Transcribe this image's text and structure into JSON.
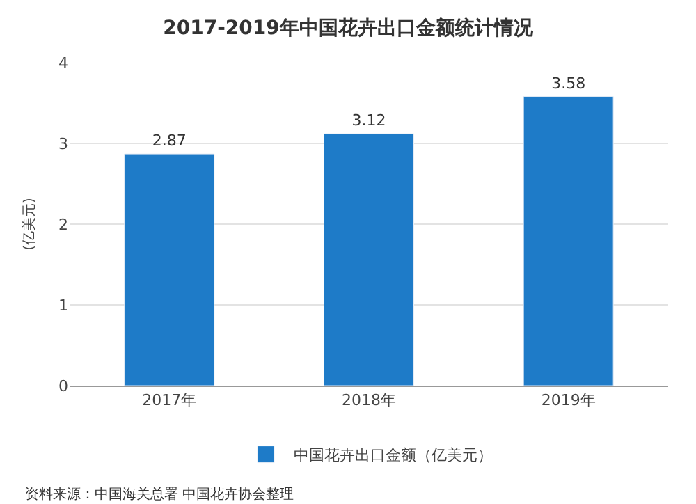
{
  "chart_data": {
    "type": "bar",
    "title": "2017-2019年中国花卉出口金额统计情况",
    "ylabel": "(亿美元)",
    "categories": [
      "2017年",
      "2018年",
      "2019年"
    ],
    "series": [
      {
        "name": "中国花卉出口金额（亿美元）",
        "color": "#1e7bc8",
        "values": [
          2.87,
          3.12,
          3.58
        ]
      }
    ],
    "ylim": [
      0,
      4
    ],
    "yticks": [
      0,
      1,
      2,
      3,
      4
    ],
    "grid": "y",
    "legend": "bottom",
    "data_labels": true,
    "annotations": [
      "资料来源：中国海关总署 中国花卉协会整理"
    ]
  }
}
